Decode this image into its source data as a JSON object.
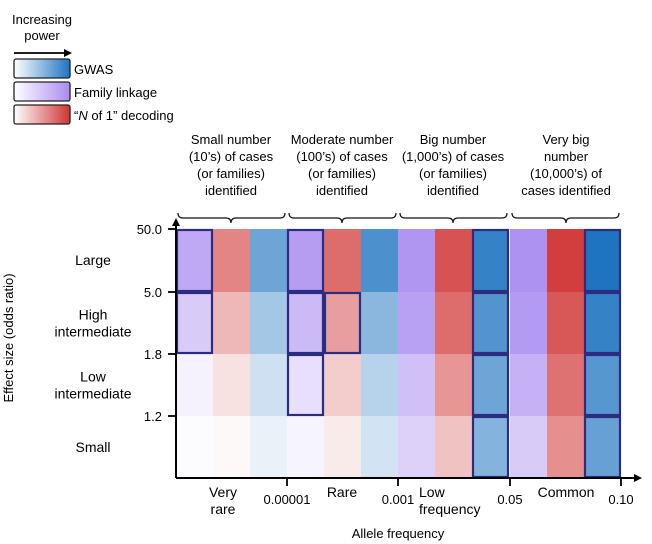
{
  "chart_data": {
    "type": "heatmap",
    "power_title": [
      "Increasing",
      "power"
    ],
    "legend": [
      {
        "label": "GWAS",
        "gradient": [
          "#ffffff",
          "#1f74c1"
        ]
      },
      {
        "label": "Family linkage",
        "gradient": [
          "#ffffff",
          "#a98cf0"
        ]
      },
      {
        "label_parts": [
          "“",
          "N",
          " of 1” decoding"
        ],
        "gradient": [
          "#ffffff",
          "#d03434"
        ]
      }
    ],
    "top_groups": [
      {
        "lines": [
          "Small number",
          "(10’s) of cases",
          "(or families)",
          "identified"
        ]
      },
      {
        "lines": [
          "Moderate number",
          "(100’s) of cases",
          "(or families)",
          "identified"
        ]
      },
      {
        "lines": [
          "Big number",
          "(1,000’s) of cases",
          "(or families)",
          "identified"
        ]
      },
      {
        "lines": [
          "Very big",
          "number",
          "(10,000’s) of",
          "cases identified"
        ]
      }
    ],
    "y_axis_label": "Effect size (odds ratio)",
    "y_ticks": [
      "50.0",
      "5.0",
      "1.8",
      "1.2"
    ],
    "y_categories": [
      {
        "lines": [
          "Large"
        ]
      },
      {
        "lines": [
          "High",
          "intermediate"
        ]
      },
      {
        "lines": [
          "Low",
          "intermediate"
        ]
      },
      {
        "lines": [
          "Small"
        ]
      }
    ],
    "x_axis_label": "Allele frequency",
    "x_ticks": [
      "0.00001",
      "0.001",
      "0.05",
      "0.10"
    ],
    "x_categories": [
      {
        "lines": [
          "Very",
          "rare"
        ]
      },
      {
        "lines": [
          "Rare"
        ]
      },
      {
        "lines": [
          "Low",
          "frequency"
        ]
      },
      {
        "lines": [
          "Common"
        ]
      }
    ],
    "methods": [
      "Family linkage",
      "N of 1 decoding",
      "GWAS"
    ],
    "rows": [
      "Large",
      "High intermediate",
      "Low intermediate",
      "Small"
    ],
    "columns": [
      "Very rare",
      "Rare",
      "Low frequency",
      "Common"
    ],
    "intensity": [
      [
        [
          0.75,
          0.6,
          0.65
        ],
        [
          0.85,
          0.72,
          0.8
        ],
        [
          0.92,
          0.85,
          0.9
        ],
        [
          0.95,
          0.95,
          1.0
        ]
      ],
      [
        [
          0.45,
          0.35,
          0.4
        ],
        [
          0.6,
          0.48,
          0.52
        ],
        [
          0.82,
          0.72,
          0.77
        ],
        [
          0.88,
          0.83,
          0.9
        ]
      ],
      [
        [
          0.12,
          0.15,
          0.22
        ],
        [
          0.28,
          0.25,
          0.32
        ],
        [
          0.55,
          0.52,
          0.65
        ],
        [
          0.68,
          0.7,
          0.75
        ]
      ],
      [
        [
          0.03,
          0.03,
          0.1
        ],
        [
          0.1,
          0.1,
          0.2
        ],
        [
          0.4,
          0.3,
          0.55
        ],
        [
          0.45,
          0.55,
          0.68
        ]
      ]
    ],
    "highlighted": [
      [
        [
          true,
          false,
          false
        ],
        [
          true,
          false,
          false
        ],
        [
          false,
          false,
          true
        ],
        [
          false,
          false,
          true
        ]
      ],
      [
        [
          true,
          false,
          false
        ],
        [
          true,
          true,
          false
        ],
        [
          false,
          false,
          true
        ],
        [
          false,
          false,
          true
        ]
      ],
      [
        [
          false,
          false,
          false
        ],
        [
          true,
          false,
          false
        ],
        [
          false,
          false,
          true
        ],
        [
          false,
          false,
          true
        ]
      ],
      [
        [
          false,
          false,
          false
        ],
        [
          false,
          false,
          false
        ],
        [
          false,
          false,
          true
        ],
        [
          false,
          false,
          true
        ]
      ]
    ]
  },
  "colors": {
    "gwas": "#1f74c1",
    "family": "#a98cf0",
    "n_of_1": "#d03434",
    "highlight_border": "#2a2d80",
    "text": "#111111"
  }
}
